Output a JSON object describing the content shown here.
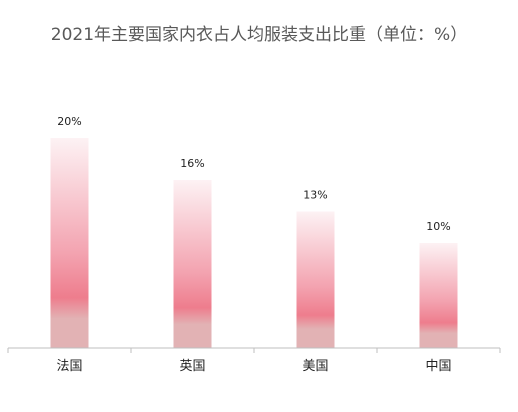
{
  "chart_data": {
    "type": "bar",
    "title": "2021年主要国家内衣占人均服装支出比重（单位：%）",
    "categories": [
      "法国",
      "英国",
      "美国",
      "中国"
    ],
    "values": [
      20,
      16,
      13,
      10
    ],
    "value_labels": [
      "20%",
      "16%",
      "13%",
      "10%"
    ],
    "xlabel": "",
    "ylabel": "",
    "ylim": [
      0,
      20
    ],
    "grid": false,
    "legend": "none",
    "colors": {
      "bar_top": "#fdf2f4",
      "bar_mid": "#f3a3b0",
      "bar_band": "#ee7d8d",
      "bar_bottom": "#e2b2b4",
      "axis": "#bfbfbf",
      "title": "#595959"
    }
  }
}
